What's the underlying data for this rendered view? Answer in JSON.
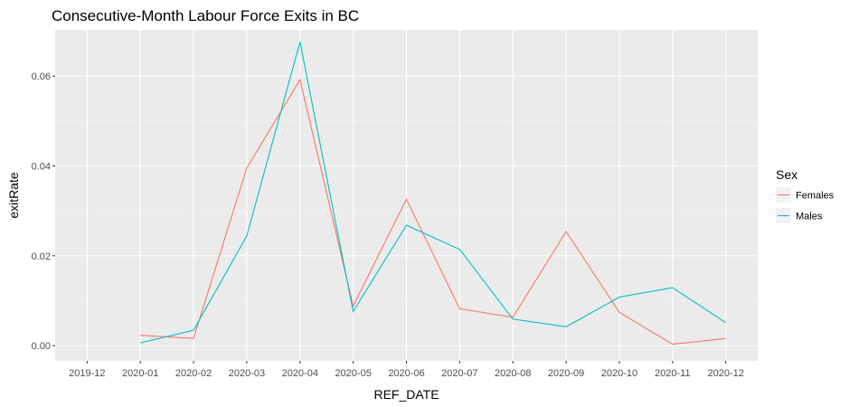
{
  "chart_data": {
    "type": "line",
    "title": "Consecutive-Month Labour Force Exits in BC",
    "xlabel": "REF_DATE",
    "ylabel": "exitRate",
    "categories": [
      "2019-12",
      "2020-01",
      "2020-02",
      "2020-03",
      "2020-04",
      "2020-05",
      "2020-06",
      "2020-07",
      "2020-08",
      "2020-09",
      "2020-10",
      "2020-11",
      "2020-12"
    ],
    "y_ticks": [
      0.0,
      0.02,
      0.04,
      0.06
    ],
    "y_tick_labels": [
      "0.00",
      "0.02",
      "0.04",
      "0.06"
    ],
    "ylim": [
      -0.0034,
      0.0703
    ],
    "grid": true,
    "legend": {
      "title": "Sex",
      "placement": "right"
    },
    "series": [
      {
        "name": "Females",
        "color": "#F8766D",
        "values": [
          null,
          0.0023,
          0.0016,
          0.0395,
          0.0592,
          0.0088,
          0.0326,
          0.0082,
          0.0063,
          0.0254,
          0.0074,
          0.0003,
          0.0016
        ]
      },
      {
        "name": "Males",
        "color": "#00BFC4",
        "values": [
          null,
          0.0006,
          0.0034,
          0.0244,
          0.0676,
          0.0076,
          0.0268,
          0.0214,
          0.0059,
          0.0042,
          0.0108,
          0.0129,
          0.0051
        ]
      }
    ]
  }
}
